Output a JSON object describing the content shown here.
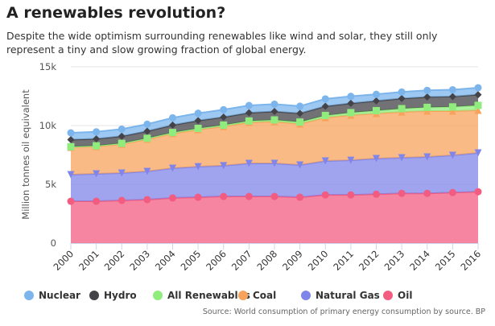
{
  "title": "A renewables revolution?",
  "subtitle": "Despite the wide optimism surrounding renewables like wind and solar, they still only represent a tiny and slow growing fraction of global energy.",
  "source": "Source: World consumption of primary energy consumption by source. BP",
  "chart_data": {
    "type": "area",
    "stacked": true,
    "title": "A renewables revolution?",
    "ylabel": "Million tonnes oil equivalent",
    "xlabel": "",
    "ylim": [
      0,
      15000
    ],
    "yticks": [
      0,
      5000,
      10000,
      15000
    ],
    "ytick_labels": [
      "0",
      "5k",
      "10k",
      "15k"
    ],
    "grid": true,
    "legend": "bottom",
    "x": [
      "2000",
      "2001",
      "2002",
      "2003",
      "2004",
      "2005",
      "2006",
      "2007",
      "2008",
      "2009",
      "2010",
      "2011",
      "2012",
      "2013",
      "2014",
      "2015",
      "2016"
    ],
    "series": [
      {
        "name": "Oil",
        "color": "#f15c80",
        "marker": "circle",
        "values": [
          3560,
          3560,
          3630,
          3700,
          3840,
          3900,
          3970,
          3970,
          3970,
          3900,
          4100,
          4100,
          4160,
          4230,
          4230,
          4300,
          4370
        ]
      },
      {
        "name": "Natural Gas",
        "color": "#8085e9",
        "marker": "triangle-down",
        "values": [
          2260,
          2330,
          2330,
          2400,
          2530,
          2600,
          2610,
          2810,
          2810,
          2740,
          2890,
          2950,
          3030,
          3030,
          3100,
          3170,
          3300
        ]
      },
      {
        "name": "Coal",
        "color": "#f7a35c",
        "marker": "triangle",
        "values": [
          2330,
          2330,
          2460,
          2740,
          2950,
          3160,
          3350,
          3490,
          3560,
          3500,
          3690,
          3840,
          3840,
          3900,
          3900,
          3760,
          3630
        ]
      },
      {
        "name": "All Renewables",
        "color": "#90ed7d",
        "marker": "square",
        "values": [
          50,
          60,
          70,
          80,
          90,
          100,
          110,
          120,
          140,
          160,
          180,
          210,
          240,
          280,
          320,
          360,
          420
        ]
      },
      {
        "name": "Hydro",
        "color": "#434348",
        "marker": "diamond",
        "values": [
          600,
          590,
          600,
          600,
          630,
          660,
          680,
          700,
          720,
          740,
          780,
          790,
          830,
          860,
          880,
          880,
          910
        ]
      },
      {
        "name": "Nuclear",
        "color": "#7cb5ec",
        "marker": "circle",
        "values": [
          580,
          600,
          610,
          600,
          620,
          630,
          630,
          620,
          620,
          610,
          630,
          600,
          560,
          560,
          570,
          580,
          590
        ]
      }
    ],
    "legend_order": [
      "Nuclear",
      "Hydro",
      "All Renewables",
      "Coal",
      "Natural Gas",
      "Oil"
    ]
  }
}
